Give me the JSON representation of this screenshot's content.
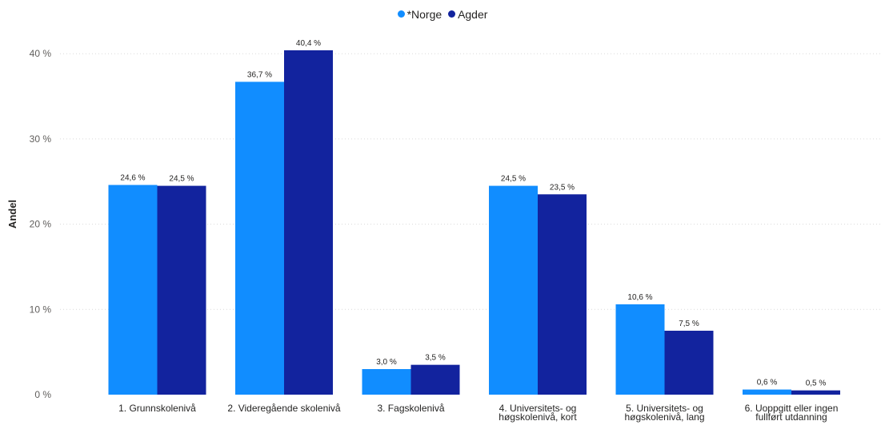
{
  "chart_data": {
    "type": "bar",
    "title": "",
    "xlabel": "",
    "ylabel": "Andel",
    "ylim": [
      0,
      42
    ],
    "yticks": [
      0,
      10,
      20,
      30,
      40
    ],
    "ytick_labels": [
      "0 %",
      "10 %",
      "20 %",
      "30 %",
      "40 %"
    ],
    "grid": true,
    "legend_position": "top-center",
    "categories": [
      [
        "1. Grunnskolenivå"
      ],
      [
        "2. Videregående skolenivå"
      ],
      [
        "3. Fagskolenivå"
      ],
      [
        "4. Universitets- og",
        "høgskolenivå, kort"
      ],
      [
        "5. Universitets- og",
        "høgskolenivå, lang"
      ],
      [
        "6. Uoppgitt eller ingen",
        "fullført utdanning"
      ]
    ],
    "series": [
      {
        "name": "*Norge",
        "color": "#118DFF",
        "values": [
          24.6,
          36.7,
          3.0,
          24.5,
          10.6,
          0.6
        ],
        "labels": [
          "24,6 %",
          "36,7 %",
          "3,0 %",
          "24,5 %",
          "10,6 %",
          "0,6 %"
        ]
      },
      {
        "name": "Agder",
        "color": "#12239E",
        "values": [
          24.5,
          40.4,
          3.5,
          23.5,
          7.5,
          0.5
        ],
        "labels": [
          "24,5 %",
          "40,4 %",
          "3,5 %",
          "23,5 %",
          "7,5 %",
          "0,5 %"
        ]
      }
    ]
  }
}
